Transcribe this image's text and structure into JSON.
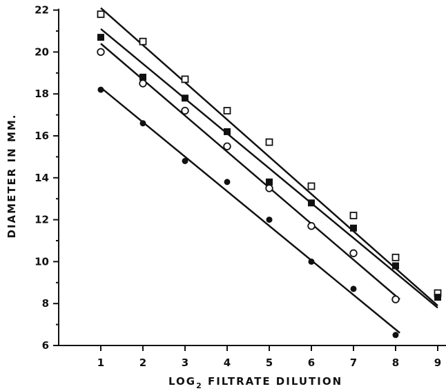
{
  "chart_data": {
    "type": "scatter",
    "title": "",
    "xlabel_main": "LOG",
    "xlabel_sub": "2",
    "xlabel_rest": " FILTRATE DILUTION",
    "ylabel": "DIAMETER IN MM.",
    "xlim": [
      0,
      9
    ],
    "ylim": [
      6,
      22
    ],
    "x_ticks": [
      "1",
      "2",
      "3",
      "4",
      "5",
      "6",
      "7",
      "8",
      "9"
    ],
    "y_ticks": [
      "6",
      "8",
      "10",
      "12",
      "14",
      "16",
      "18",
      "20",
      "22"
    ],
    "grid": false,
    "legend": "none",
    "series": [
      {
        "marker": "open-square",
        "x": [
          1,
          2,
          3,
          4,
          5,
          6,
          7,
          8,
          9
        ],
        "y": [
          21.8,
          20.5,
          18.7,
          17.2,
          15.7,
          13.6,
          12.2,
          10.2,
          8.5
        ],
        "fit": {
          "x": [
            1,
            9
          ],
          "y": [
            22.1,
            7.9
          ]
        }
      },
      {
        "marker": "filled-square",
        "x": [
          1,
          2,
          3,
          4,
          5,
          6,
          7,
          8,
          9
        ],
        "y": [
          20.7,
          18.8,
          17.8,
          16.2,
          13.8,
          12.8,
          11.6,
          9.8,
          8.3
        ],
        "fit": {
          "x": [
            1,
            9
          ],
          "y": [
            21.1,
            7.8
          ]
        }
      },
      {
        "marker": "open-circle",
        "x": [
          1,
          2,
          3,
          4,
          5,
          6,
          7,
          8
        ],
        "y": [
          20.0,
          18.5,
          17.2,
          15.5,
          13.5,
          11.7,
          10.4,
          8.2
        ],
        "fit": {
          "x": [
            1,
            8.1
          ],
          "y": [
            20.4,
            8.2
          ]
        }
      },
      {
        "marker": "filled-circle",
        "x": [
          1,
          2,
          3,
          4,
          5,
          6,
          7,
          8
        ],
        "y": [
          18.2,
          16.6,
          14.8,
          13.8,
          12.0,
          10.0,
          8.7,
          6.5
        ],
        "fit": {
          "x": [
            1,
            8.1
          ],
          "y": [
            18.3,
            6.6
          ]
        }
      }
    ]
  }
}
